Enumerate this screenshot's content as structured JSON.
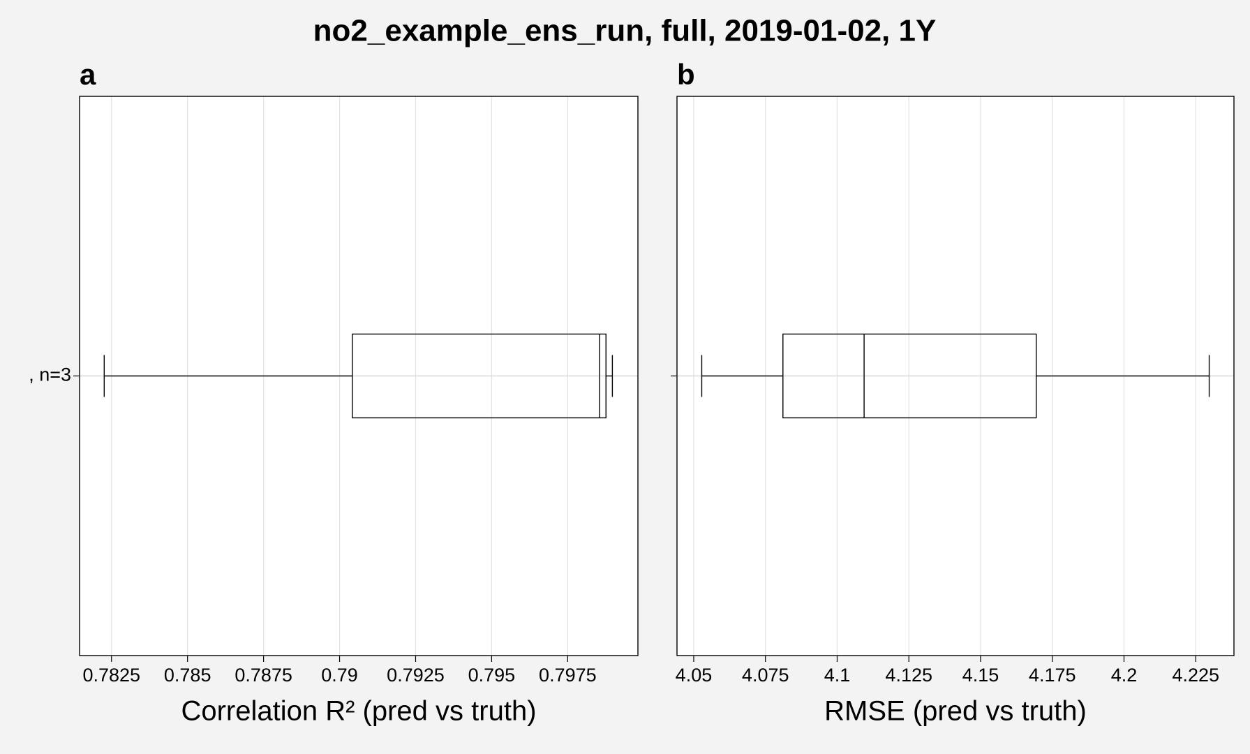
{
  "title": "no2_example_ens_run, full, 2019-01-02, 1Y",
  "chart_data": [
    {
      "type": "box",
      "panel_label": "a",
      "xlabel": "Correlation R² (pred vs truth)",
      "categories": [
        ", n=3"
      ],
      "boxes": [
        {
          "min": 0.78226,
          "q1": 0.79042,
          "median": 0.79855,
          "q3": 0.79876,
          "max": 0.79897
        }
      ],
      "xlim": [
        0.78145,
        0.79981
      ],
      "xticks": [
        0.7825,
        0.785,
        0.7875,
        0.79,
        0.7925,
        0.795,
        0.7975
      ],
      "grid": true,
      "color": "#000000",
      "show_category_labels": true
    },
    {
      "type": "box",
      "panel_label": "b",
      "xlabel": "RMSE (pred vs truth)",
      "categories": [
        null
      ],
      "boxes": [
        {
          "min": 4.0528,
          "q1": 4.0811,
          "median": 4.1094,
          "q3": 4.1694,
          "max": 4.2297
        }
      ],
      "xlim": [
        4.04417,
        4.23833
      ],
      "xticks": [
        4.05,
        4.075,
        4.1,
        4.125,
        4.15,
        4.175,
        4.2,
        4.225
      ],
      "grid": true,
      "color": "#000000",
      "show_category_labels": false
    }
  ]
}
